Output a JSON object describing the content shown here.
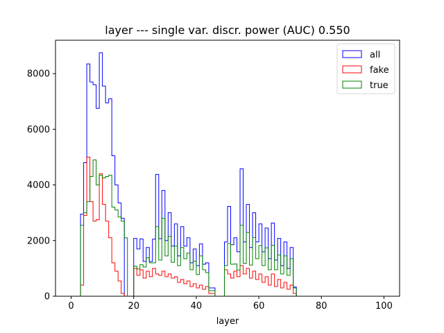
{
  "chart_data": {
    "type": "histogram-step",
    "title": "layer --- single var. discr. power (AUC) 0.550",
    "xlabel": "layer",
    "ylabel": "",
    "xlim": [
      -5,
      105
    ],
    "ylim": [
      0,
      9200
    ],
    "x_ticks": [
      0,
      20,
      40,
      60,
      80,
      100
    ],
    "y_ticks": [
      0,
      2000,
      4000,
      6000,
      8000
    ],
    "legend_position": "top-right",
    "bin_width": 1,
    "bin_start": 0,
    "series": [
      {
        "name": "all",
        "color": "#0000ff",
        "values": [
          0,
          0,
          0,
          2950,
          4800,
          8350,
          7700,
          7600,
          6750,
          8750,
          7550,
          6950,
          7100,
          5050,
          4000,
          3350,
          2800,
          0,
          0,
          0,
          2080,
          1700,
          2060,
          1250,
          1750,
          1250,
          2050,
          4380,
          2070,
          3800,
          2000,
          3000,
          1800,
          2600,
          1450,
          2500,
          1800,
          2100,
          1200,
          1700,
          1100,
          1880,
          1150,
          1200,
          300,
          300,
          0,
          0,
          0,
          1950,
          3230,
          1850,
          2100,
          1600,
          4580,
          1950,
          3300,
          1750,
          3000,
          1950,
          2600,
          1600,
          2450,
          1350,
          2630,
          1300,
          2080,
          1100,
          1950,
          1000,
          1750,
          330
        ]
      },
      {
        "name": "fake",
        "color": "#ff0000",
        "values": [
          0,
          0,
          0,
          400,
          2900,
          5000,
          3400,
          2700,
          2750,
          4400,
          3300,
          2700,
          2100,
          1200,
          900,
          550,
          100,
          0,
          0,
          0,
          1000,
          750,
          950,
          650,
          900,
          700,
          1000,
          800,
          750,
          900,
          700,
          800,
          650,
          700,
          500,
          600,
          450,
          550,
          350,
          450,
          300,
          400,
          250,
          350,
          100,
          100,
          0,
          0,
          0,
          950,
          800,
          650,
          900,
          700,
          1100,
          800,
          1000,
          650,
          900,
          600,
          800,
          500,
          700,
          400,
          800,
          350,
          600,
          300,
          500,
          250,
          400,
          100
        ]
      },
      {
        "name": "true",
        "color": "#008000",
        "values": [
          0,
          0,
          0,
          2550,
          3000,
          3400,
          4300,
          4900,
          4000,
          4350,
          4250,
          4300,
          4350,
          3200,
          3100,
          2850,
          2700,
          2100,
          0,
          0,
          1080,
          980,
          1130,
          1050,
          1380,
          1200,
          1200,
          2500,
          1300,
          2800,
          1450,
          2150,
          1220,
          1800,
          1100,
          1750,
          1350,
          1550,
          950,
          1260,
          780,
          1450,
          950,
          850,
          200,
          200,
          0,
          0,
          0,
          1100,
          1900,
          1150,
          1160,
          940,
          2550,
          1180,
          2290,
          1120,
          2110,
          1350,
          1820,
          1100,
          1740,
          950,
          1830,
          950,
          1480,
          800,
          1450,
          750,
          1350,
          300
        ]
      }
    ]
  }
}
